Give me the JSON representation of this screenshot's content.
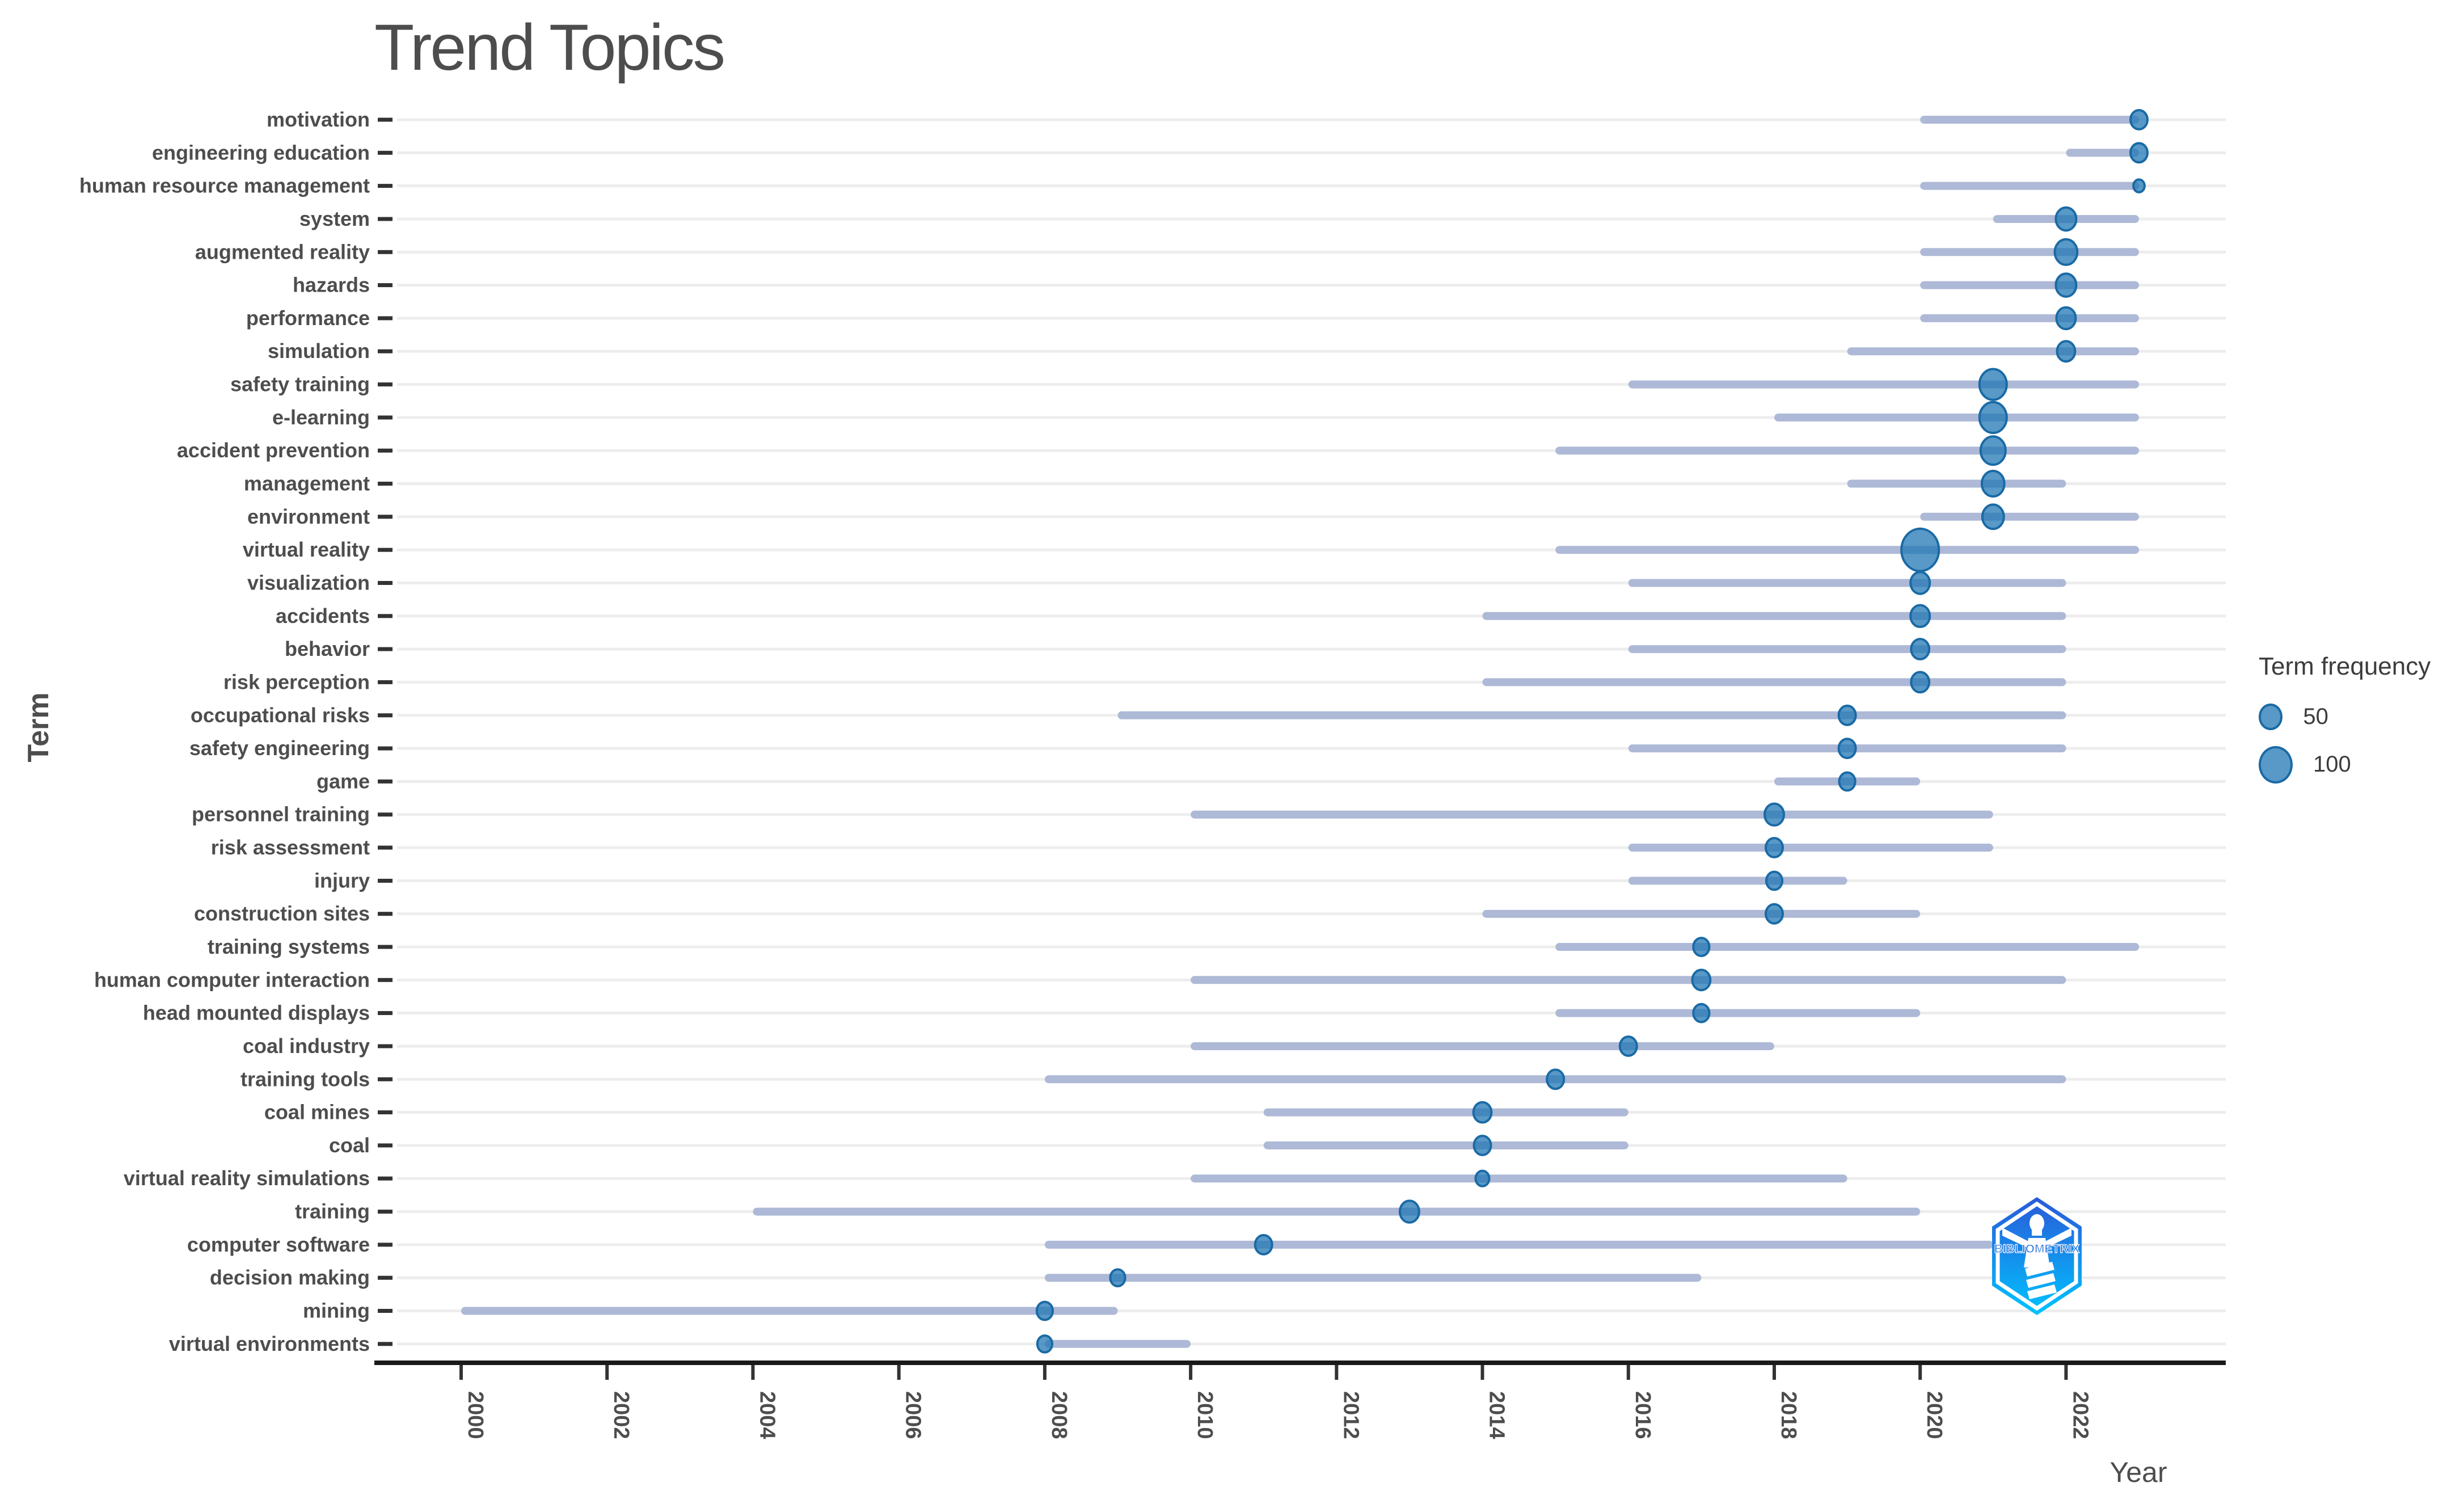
{
  "title": "Trend Topics",
  "axes": {
    "x_title": "Year",
    "y_title": "Term"
  },
  "legend": {
    "title": "Term frequency",
    "items": [
      {
        "label": "50",
        "value": 50
      },
      {
        "label": "100",
        "value": 100
      }
    ]
  },
  "logo": {
    "text": "BIBLIOMETRIX"
  },
  "colors": {
    "bubble_fill": "#2077b4",
    "bubble_stroke": "#1a6aa5",
    "range_line": "#adb9d6",
    "gridline": "#ededed",
    "axis_line": "#1a1a1a",
    "tick": "#333333",
    "label_text": "#4d4d4d",
    "title_text": "#4d4d4d",
    "logo_top": "#2a59d8",
    "logo_bottom": "#00c4ff"
  },
  "chart_data": {
    "type": "scatter",
    "title": "Trend Topics",
    "xlabel": "Year",
    "ylabel": "Term",
    "x_ticks": [
      2000,
      2002,
      2004,
      2006,
      2008,
      2010,
      2012,
      2014,
      2016,
      2018,
      2020,
      2022
    ],
    "xlim": [
      1999,
      2024
    ],
    "grid": true,
    "legend_position": "right",
    "bubble_size_legend": [
      50,
      100
    ],
    "encoding_note": "Each row: horizontal line spans year_q1 to year_q3; bubble at year_med; bubble area encodes term frequency.",
    "terms": [
      {
        "term": "motivation",
        "year_q1": 2020,
        "year_med": 2023,
        "year_q3": 2023,
        "freq": 25
      },
      {
        "term": "engineering education",
        "year_q1": 2022,
        "year_med": 2023,
        "year_q3": 2023,
        "freq": 25
      },
      {
        "term": "human resource management",
        "year_q1": 2020,
        "year_med": 2023,
        "year_q3": 2023,
        "freq": 11
      },
      {
        "term": "system",
        "year_q1": 2021,
        "year_med": 2022,
        "year_q3": 2023,
        "freq": 36
      },
      {
        "term": "augmented reality",
        "year_q1": 2020,
        "year_med": 2022,
        "year_q3": 2023,
        "freq": 44
      },
      {
        "term": "hazards",
        "year_q1": 2020,
        "year_med": 2022,
        "year_q3": 2023,
        "freq": 36
      },
      {
        "term": "performance",
        "year_q1": 2020,
        "year_med": 2022,
        "year_q3": 2023,
        "freq": 32
      },
      {
        "term": "simulation",
        "year_q1": 2019,
        "year_med": 2022,
        "year_q3": 2023,
        "freq": 28
      },
      {
        "term": "safety training",
        "year_q1": 2016,
        "year_med": 2021,
        "year_q3": 2023,
        "freq": 64
      },
      {
        "term": "e-learning",
        "year_q1": 2018,
        "year_med": 2021,
        "year_q3": 2023,
        "freq": 64
      },
      {
        "term": "accident prevention",
        "year_q1": 2015,
        "year_med": 2021,
        "year_q3": 2023,
        "freq": 54
      },
      {
        "term": "management",
        "year_q1": 2019,
        "year_med": 2021,
        "year_q3": 2022,
        "freq": 44
      },
      {
        "term": "environment",
        "year_q1": 2020,
        "year_med": 2021,
        "year_q3": 2023,
        "freq": 40
      },
      {
        "term": "virtual reality",
        "year_q1": 2015,
        "year_med": 2020,
        "year_q3": 2023,
        "freq": 121
      },
      {
        "term": "visualization",
        "year_q1": 2016,
        "year_med": 2020,
        "year_q3": 2022,
        "freq": 32
      },
      {
        "term": "accidents",
        "year_q1": 2014,
        "year_med": 2020,
        "year_q3": 2022,
        "freq": 32
      },
      {
        "term": "behavior",
        "year_q1": 2016,
        "year_med": 2020,
        "year_q3": 2022,
        "freq": 28
      },
      {
        "term": "risk perception",
        "year_q1": 2014,
        "year_med": 2020,
        "year_q3": 2022,
        "freq": 28
      },
      {
        "term": "occupational risks",
        "year_q1": 2009,
        "year_med": 2019,
        "year_q3": 2022,
        "freq": 25
      },
      {
        "term": "safety engineering",
        "year_q1": 2016,
        "year_med": 2019,
        "year_q3": 2022,
        "freq": 25
      },
      {
        "term": "game",
        "year_q1": 2018,
        "year_med": 2019,
        "year_q3": 2020,
        "freq": 22
      },
      {
        "term": "personnel training",
        "year_q1": 2010,
        "year_med": 2018,
        "year_q3": 2021,
        "freq": 32
      },
      {
        "term": "risk assessment",
        "year_q1": 2016,
        "year_med": 2018,
        "year_q3": 2021,
        "freq": 25
      },
      {
        "term": "injury",
        "year_q1": 2016,
        "year_med": 2018,
        "year_q3": 2019,
        "freq": 22
      },
      {
        "term": "construction sites",
        "year_q1": 2014,
        "year_med": 2018,
        "year_q3": 2020,
        "freq": 25
      },
      {
        "term": "training systems",
        "year_q1": 2015,
        "year_med": 2017,
        "year_q3": 2023,
        "freq": 22
      },
      {
        "term": "human computer interaction",
        "year_q1": 2010,
        "year_med": 2017,
        "year_q3": 2022,
        "freq": 28
      },
      {
        "term": "head mounted displays",
        "year_q1": 2015,
        "year_med": 2017,
        "year_q3": 2020,
        "freq": 22
      },
      {
        "term": "coal industry",
        "year_q1": 2010,
        "year_med": 2016,
        "year_q3": 2018,
        "freq": 25
      },
      {
        "term": "training tools",
        "year_q1": 2008,
        "year_med": 2015,
        "year_q3": 2022,
        "freq": 25
      },
      {
        "term": "coal mines",
        "year_q1": 2011,
        "year_med": 2014,
        "year_q3": 2016,
        "freq": 28
      },
      {
        "term": "coal",
        "year_q1": 2011,
        "year_med": 2014,
        "year_q3": 2016,
        "freq": 25
      },
      {
        "term": "virtual reality simulations",
        "year_q1": 2010,
        "year_med": 2014,
        "year_q3": 2019,
        "freq": 16
      },
      {
        "term": "training",
        "year_q1": 2004,
        "year_med": 2013,
        "year_q3": 2020,
        "freq": 32
      },
      {
        "term": "computer software",
        "year_q1": 2008,
        "year_med": 2011,
        "year_q3": 2021,
        "freq": 25
      },
      {
        "term": "decision making",
        "year_q1": 2008,
        "year_med": 2009,
        "year_q3": 2017,
        "freq": 19
      },
      {
        "term": "mining",
        "year_q1": 2000,
        "year_med": 2008,
        "year_q3": 2009,
        "freq": 22
      },
      {
        "term": "virtual environments",
        "year_q1": 2008,
        "year_med": 2008,
        "year_q3": 2010,
        "freq": 19
      }
    ]
  }
}
